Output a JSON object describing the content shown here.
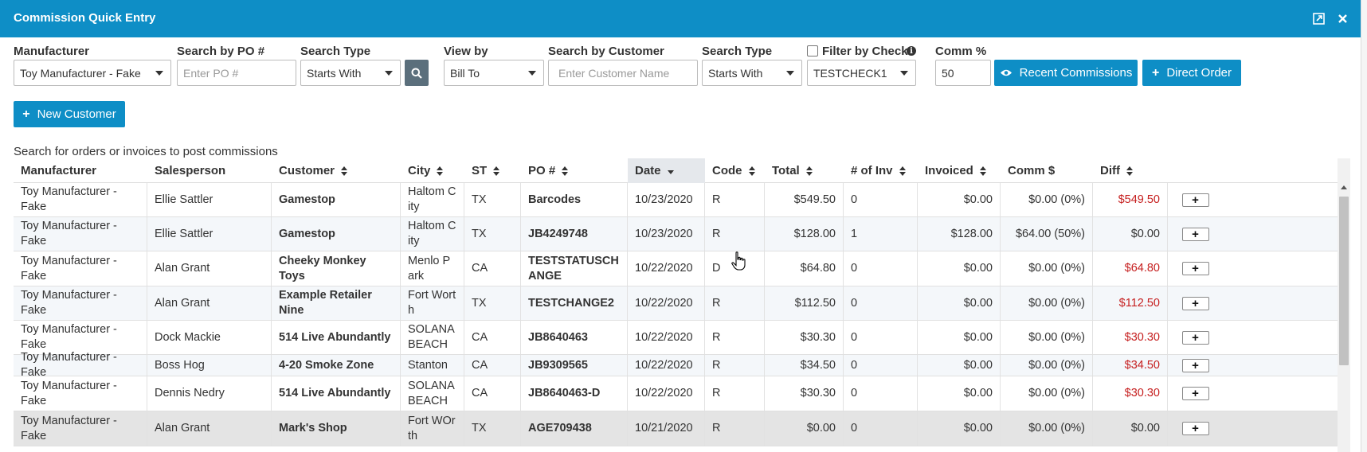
{
  "window": {
    "title": "Commission Quick Entry"
  },
  "filters": {
    "manufacturer_label": "Manufacturer",
    "manufacturer_value": "Toy Manufacturer - Fake",
    "po_label": "Search by PO #",
    "po_placeholder": "Enter PO #",
    "search_type_label": "Search Type",
    "search_type_value": "Starts With",
    "view_by_label": "View by",
    "view_by_value": "Bill To",
    "customer_label": "Search by Customer",
    "customer_placeholder": "Enter Customer Name",
    "search_type2_label": "Search Type",
    "search_type2_value": "Starts With",
    "check_label": "Filter by Check",
    "check_checked": false,
    "check_value": "TESTCHECK1",
    "comm_label": "Comm %",
    "comm_value": "50",
    "recent_label": "Recent Commissions",
    "direct_label": "Direct Order",
    "new_customer_label": "New Customer"
  },
  "hint": "Search for orders or invoices to post commissions",
  "table": {
    "columns": [
      "Manufacturer",
      "Salesperson",
      "Customer",
      "City",
      "ST",
      "PO #",
      "Date",
      "Code",
      "Total",
      "# of Inv",
      "Invoiced",
      "Comm $",
      "Diff"
    ],
    "sorted_column": "Date",
    "rows": [
      [
        "Toy Manufacturer - Fake",
        "Ellie Sattler",
        "Gamestop",
        "Haltom City",
        "TX",
        "Barcodes",
        "10/23/2020",
        "R",
        "$549.50",
        "0",
        "$0.00",
        "$0.00 (0%)",
        "$549.50"
      ],
      [
        "Toy Manufacturer - Fake",
        "Ellie Sattler",
        "Gamestop",
        "Haltom City",
        "TX",
        "JB4249748",
        "10/23/2020",
        "R",
        "$128.00",
        "1",
        "$128.00",
        "$64.00 (50%)",
        "$0.00"
      ],
      [
        "Toy Manufacturer - Fake",
        "Alan Grant",
        "Cheeky Monkey Toys",
        "Menlo Park",
        "CA",
        "TESTSTATUSCHANGE",
        "10/22/2020",
        "D",
        "$64.80",
        "0",
        "$0.00",
        "$0.00 (0%)",
        "$64.80"
      ],
      [
        "Toy Manufacturer - Fake",
        "Alan Grant",
        "Example Retailer Nine",
        "Fort Worth",
        "TX",
        "TESTCHANGE2",
        "10/22/2020",
        "R",
        "$112.50",
        "0",
        "$0.00",
        "$0.00 (0%)",
        "$112.50"
      ],
      [
        "Toy Manufacturer - Fake",
        "Dock Mackie",
        "514 Live Abundantly",
        "SOLANA BEACH",
        "CA",
        "JB8640463",
        "10/22/2020",
        "R",
        "$30.30",
        "0",
        "$0.00",
        "$0.00 (0%)",
        "$30.30"
      ],
      [
        "Toy Manufacturer - Fake",
        "Boss Hog",
        "4-20 Smoke Zone",
        "Stanton",
        "CA",
        "JB9309565",
        "10/22/2020",
        "R",
        "$34.50",
        "0",
        "$0.00",
        "$0.00 (0%)",
        "$34.50"
      ],
      [
        "Toy Manufacturer - Fake",
        "Dennis Nedry",
        "514 Live Abundantly",
        "SOLANA BEACH",
        "CA",
        "JB8640463-D",
        "10/22/2020",
        "R",
        "$30.30",
        "0",
        "$0.00",
        "$0.00 (0%)",
        "$30.30"
      ],
      [
        "Toy Manufacturer - Fake",
        "Alan Grant",
        "Mark's Shop",
        "Fort WOrth",
        "TX",
        "AGE709438",
        "10/21/2020",
        "R",
        "$0.00",
        "0",
        "$0.00",
        "$0.00 (0%)",
        "$0.00"
      ]
    ],
    "row_action_label": "+"
  },
  "colors": {
    "header_bg": "#0e8ec6",
    "diff_red": "#c62020",
    "search_btn": "#5b6f7c"
  }
}
